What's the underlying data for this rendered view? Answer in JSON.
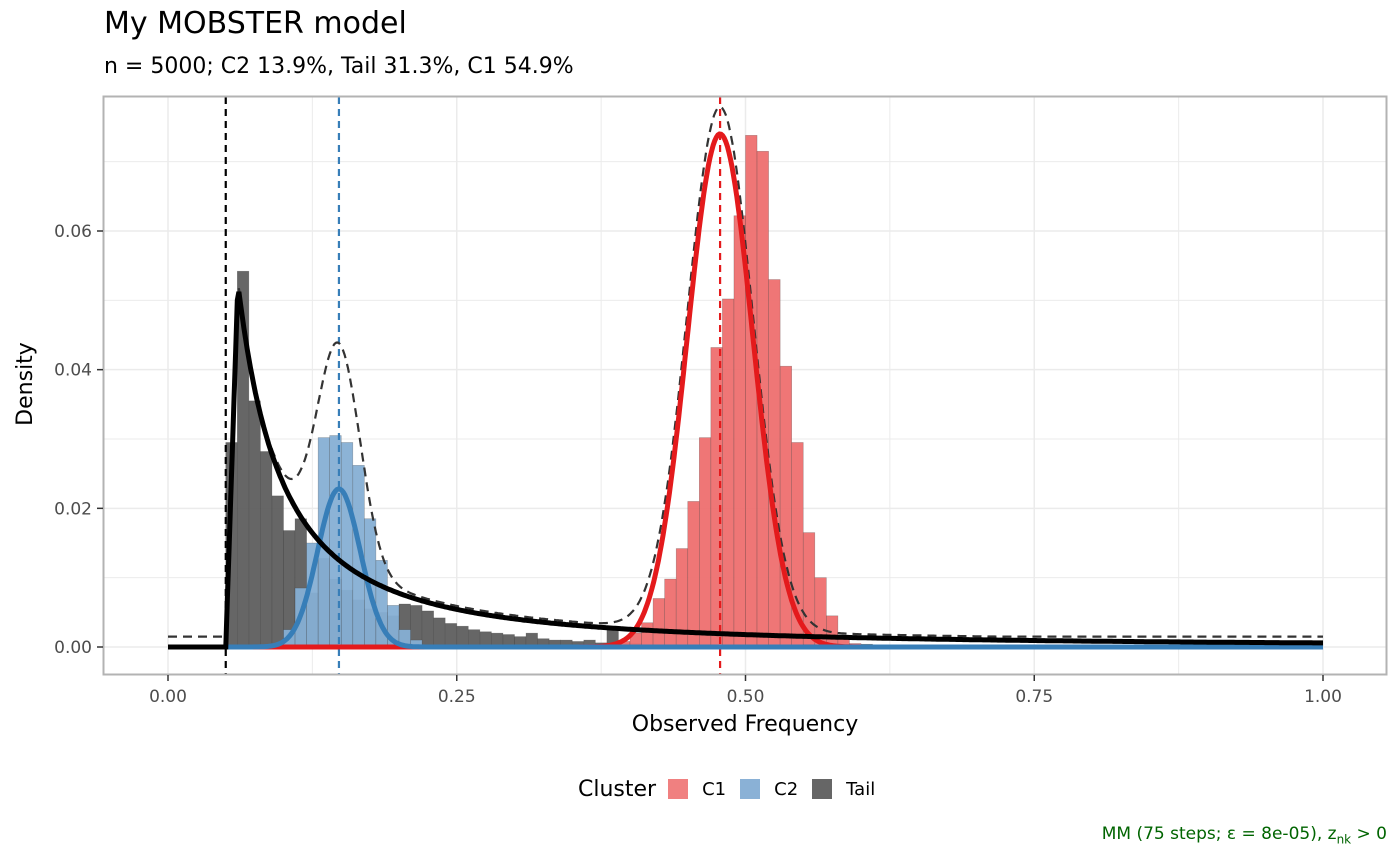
{
  "title": "My MOBSTER model",
  "subtitle": "n = 5000; C2 13.9%, Tail 31.3%, C1 54.9%",
  "caption": {
    "main": "MM (75 steps; ε = 8e-05), z",
    "subscript": "nk",
    "suffix": " > 0"
  },
  "legend": {
    "title": "Cluster",
    "items": [
      {
        "label": "C1",
        "color": "#F08080"
      },
      {
        "label": "C2",
        "color": "#8AB1D6"
      },
      {
        "label": "Tail",
        "color": "#666666"
      }
    ]
  },
  "colors": {
    "c1_line": "#E41A1C",
    "c2_line": "#377EB8",
    "tail_line": "#000000",
    "c1_fill": "#EE6F6F",
    "c2_fill": "#86AFD4",
    "tail_fill": "#5E5E5E",
    "mixture": "#333333",
    "grid": "#EBEBEB",
    "panel_border": "#B3B3B3"
  },
  "chart_data": {
    "type": "histogram",
    "xlabel": "Observed Frequency",
    "ylabel": "Density",
    "xlim": [
      -0.055,
      1.055
    ],
    "ylim": [
      -0.004,
      0.079
    ],
    "x_ticks": [
      0.0,
      0.25,
      0.5,
      0.75,
      1.0
    ],
    "x_tick_labels": [
      "0.00",
      "0.25",
      "0.50",
      "0.75",
      "1.00"
    ],
    "y_ticks": [
      0.0,
      0.02,
      0.04,
      0.06
    ],
    "y_tick_labels": [
      "0.00",
      "0.02",
      "0.04",
      "0.06"
    ],
    "grid": true,
    "legend_position": "bottom",
    "bin_width": 0.01,
    "histogram": {
      "Tail": [
        [
          0.05,
          0.0295
        ],
        [
          0.06,
          0.0542
        ],
        [
          0.07,
          0.0355
        ],
        [
          0.08,
          0.0282
        ],
        [
          0.09,
          0.0218
        ],
        [
          0.1,
          0.0168
        ],
        [
          0.11,
          0.0185
        ],
        [
          0.12,
          0.0078
        ],
        [
          0.13,
          0.0128
        ],
        [
          0.14,
          0.0098
        ],
        [
          0.15,
          0.0082
        ],
        [
          0.16,
          0.0068
        ],
        [
          0.17,
          0.0055
        ],
        [
          0.18,
          0.005
        ],
        [
          0.19,
          0.0045
        ],
        [
          0.2,
          0.0062
        ],
        [
          0.21,
          0.006
        ],
        [
          0.22,
          0.0052
        ],
        [
          0.23,
          0.0042
        ],
        [
          0.24,
          0.0034
        ],
        [
          0.25,
          0.003
        ],
        [
          0.26,
          0.0025
        ],
        [
          0.27,
          0.0022
        ],
        [
          0.28,
          0.002
        ],
        [
          0.29,
          0.0018
        ],
        [
          0.3,
          0.0015
        ],
        [
          0.31,
          0.002
        ],
        [
          0.32,
          0.0012
        ],
        [
          0.33,
          0.001
        ],
        [
          0.34,
          0.001
        ],
        [
          0.35,
          0.0008
        ],
        [
          0.36,
          0.001
        ],
        [
          0.37,
          0.0006
        ],
        [
          0.38,
          0.0025
        ],
        [
          0.39,
          0.0005
        ],
        [
          0.4,
          0.0005
        ],
        [
          0.55,
          0.0004
        ],
        [
          0.6,
          0.0004
        ],
        [
          0.62,
          0.0003
        ],
        [
          0.66,
          0.0003
        ],
        [
          0.7,
          0.0002
        ],
        [
          0.75,
          0.0002
        ],
        [
          0.8,
          0.0002
        ],
        [
          0.85,
          0.0002
        ],
        [
          0.9,
          0.0002
        ],
        [
          0.95,
          0.0002
        ]
      ],
      "C2": [
        [
          0.1,
          0.0025
        ],
        [
          0.11,
          0.0085
        ],
        [
          0.12,
          0.015
        ],
        [
          0.13,
          0.0302
        ],
        [
          0.14,
          0.0305
        ],
        [
          0.15,
          0.0295
        ],
        [
          0.16,
          0.0262
        ],
        [
          0.17,
          0.0185
        ],
        [
          0.18,
          0.0125
        ],
        [
          0.19,
          0.006
        ],
        [
          0.2,
          0.0025
        ],
        [
          0.21,
          0.001
        ]
      ],
      "C1": [
        [
          0.38,
          0.0003
        ],
        [
          0.39,
          0.0008
        ],
        [
          0.4,
          0.002
        ],
        [
          0.41,
          0.0035
        ],
        [
          0.42,
          0.007
        ],
        [
          0.43,
          0.0098
        ],
        [
          0.44,
          0.0142
        ],
        [
          0.45,
          0.021
        ],
        [
          0.46,
          0.0302
        ],
        [
          0.47,
          0.0432
        ],
        [
          0.48,
          0.0502
        ],
        [
          0.49,
          0.0622
        ],
        [
          0.5,
          0.0738
        ],
        [
          0.51,
          0.0715
        ],
        [
          0.52,
          0.053
        ],
        [
          0.53,
          0.0405
        ],
        [
          0.54,
          0.0295
        ],
        [
          0.55,
          0.0165
        ],
        [
          0.56,
          0.01
        ],
        [
          0.57,
          0.0045
        ],
        [
          0.58,
          0.0015
        ],
        [
          0.59,
          0.0005
        ]
      ]
    },
    "density_lines": {
      "C1": {
        "mean": 0.478,
        "sd": 0.0283,
        "peak": 0.074,
        "range": [
          0.05,
          1.0
        ]
      },
      "C2": {
        "mean": 0.148,
        "sd": 0.0185,
        "peak": 0.0228,
        "range": [
          0.05,
          1.0
        ]
      },
      "Tail": {
        "start": 0.05,
        "peak_x": 0.0605,
        "peak": 0.0525,
        "rise": 0.003,
        "shape": 1.6,
        "end": 1.0
      },
      "Mixture": {
        "baseline": 0.0015,
        "start": 0.0,
        "end": 1.0
      }
    },
    "vertical_lines": [
      {
        "cluster": "Tail",
        "x": 0.05
      },
      {
        "cluster": "C2",
        "x": 0.148
      },
      {
        "cluster": "C1",
        "x": 0.478
      }
    ]
  }
}
